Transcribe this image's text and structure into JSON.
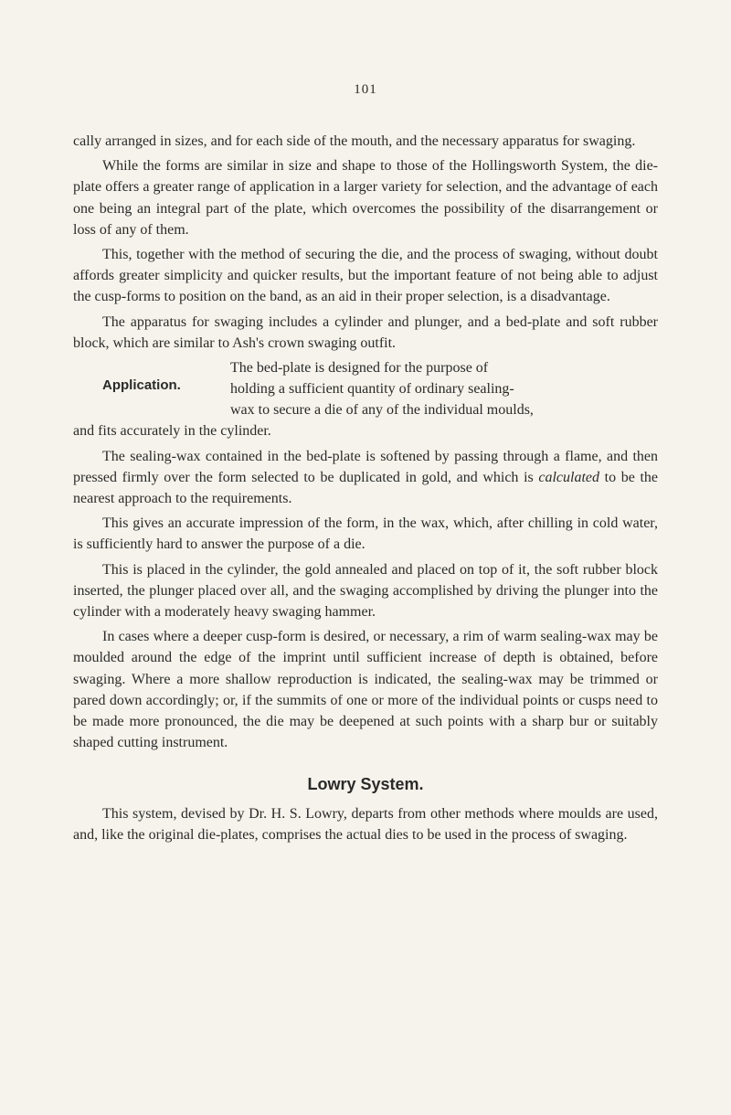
{
  "pageNumber": "101",
  "paragraphs": {
    "p1": "cally arranged in sizes, and for each side of the mouth, and the necessary apparatus for swaging.",
    "p2": "While the forms are similar in size and shape to those of the Hollingsworth System, the die-plate offers a greater range of application in a larger variety for selection, and the advantage of each one being an integral part of the plate, which overcomes the possibility of the disarrangement or loss of any of them.",
    "p3": "This, together with the method of securing the die, and the process of swaging, without doubt affords greater simplicity and quicker results, but the important feature of not being able to adjust the cusp-forms to position on the band, as an aid in their proper selection, is a disadvantage.",
    "p4": "The apparatus for swaging includes a cylinder and plunger, and a bed-plate and soft rubber block, which are similar to Ash's crown swaging outfit.",
    "applicationLabel": "Application.",
    "p5a": "The bed-plate is designed for the purpose of",
    "p5b": "holding a sufficient quantity of ordinary sealing-",
    "p5c": "wax to secure a die of any of the individual moulds,",
    "p5d": "and fits accurately in the cylinder.",
    "p6a": "The sealing-wax contained in the bed-plate is softened by passing through a flame, and then pressed firmly over the form selected to be duplicated in gold, and which is ",
    "p6italic": "calculated",
    "p6b": " to be the nearest approach to the requirements.",
    "p7": "This gives an accurate impression of the form, in the wax, which, after chilling in cold water, is sufficiently hard to answer the purpose of a die.",
    "p8": "This is placed in the cylinder, the gold annealed and placed on top of it, the soft rubber block inserted, the plunger placed over all, and the swaging accomplished by driving the plunger into the cylinder with a moderately heavy swaging hammer.",
    "p9": "In cases where a deeper cusp-form is desired, or necessary, a rim of warm sealing-wax may be moulded around the edge of the imprint until sufficient increase of depth is obtained, before swaging. Where a more shallow reproduction is indicated, the sealing-wax may be trimmed or pared down accordingly; or, if the summits of one or more of the individual points or cusps need to be made more pronounced, the die may be deepened at such points with a sharp bur or suitably shaped cutting instrument."
  },
  "heading": "Lowry System.",
  "p10": "This system, devised by Dr. H. S. Lowry, departs from other methods where moulds are used, and, like the original die-plates, comprises the actual dies to be used in the process of swaging."
}
